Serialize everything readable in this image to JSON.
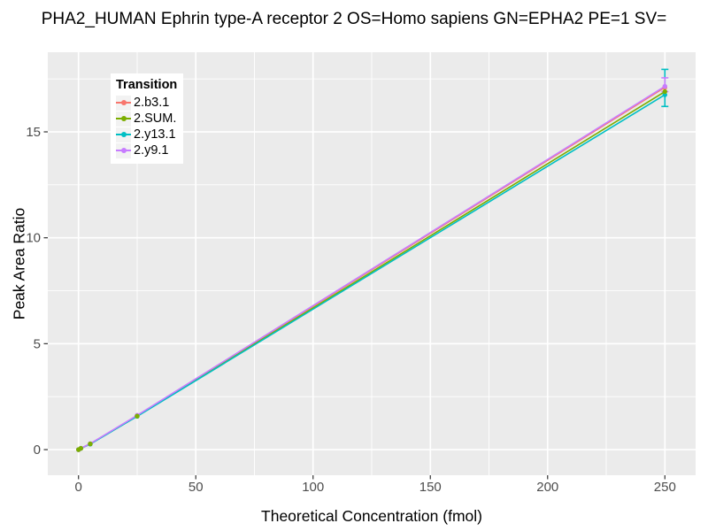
{
  "title": "PHA2_HUMAN Ephrin type-A receptor 2 OS=Homo sapiens GN=EPHA2 PE=1 SV=",
  "chart_data": {
    "type": "line",
    "xlabel": "Theoretical Concentration (fmol)",
    "ylabel": "Peak Area Ratio",
    "legend_title": "Transition",
    "legend_position": "top-left-inside",
    "panel_bg": "#EBEBEB",
    "grid_color": "#FFFFFF",
    "tick_color": "#333333",
    "tick_label_color": "#4D4D4D",
    "x": [
      0,
      1,
      5,
      25,
      250
    ],
    "xticks": [
      0,
      50,
      100,
      150,
      200,
      250
    ],
    "xticks_minor": [
      25,
      75,
      125,
      175,
      225
    ],
    "yticks": [
      0,
      5,
      10,
      15
    ],
    "yticks_minor": [
      2.5,
      7.5,
      12.5,
      17.5
    ],
    "xlim": [
      -13.1,
      263.1
    ],
    "ylim": [
      -1.21,
      18.76
    ],
    "series": [
      {
        "name": "2.b3.1",
        "color": "#F8766D",
        "values": [
          0,
          0.06,
          0.27,
          1.6,
          17.1
        ]
      },
      {
        "name": "2.SUM.",
        "color": "#7CAE00",
        "values": [
          0,
          0.06,
          0.27,
          1.58,
          16.9
        ]
      },
      {
        "name": "2.y13.1",
        "color": "#00BFC4",
        "values": [
          0,
          0.06,
          0.26,
          1.57,
          16.75
        ],
        "error_bar": {
          "x": 250,
          "ymin": 16.2,
          "ymax": 17.95
        }
      },
      {
        "name": "2.y9.1",
        "color": "#C77CFF",
        "values": [
          0,
          0.06,
          0.28,
          1.62,
          17.15
        ],
        "error_bar": {
          "x": 250,
          "ymin": 16.9,
          "ymax": 17.55
        }
      }
    ]
  }
}
